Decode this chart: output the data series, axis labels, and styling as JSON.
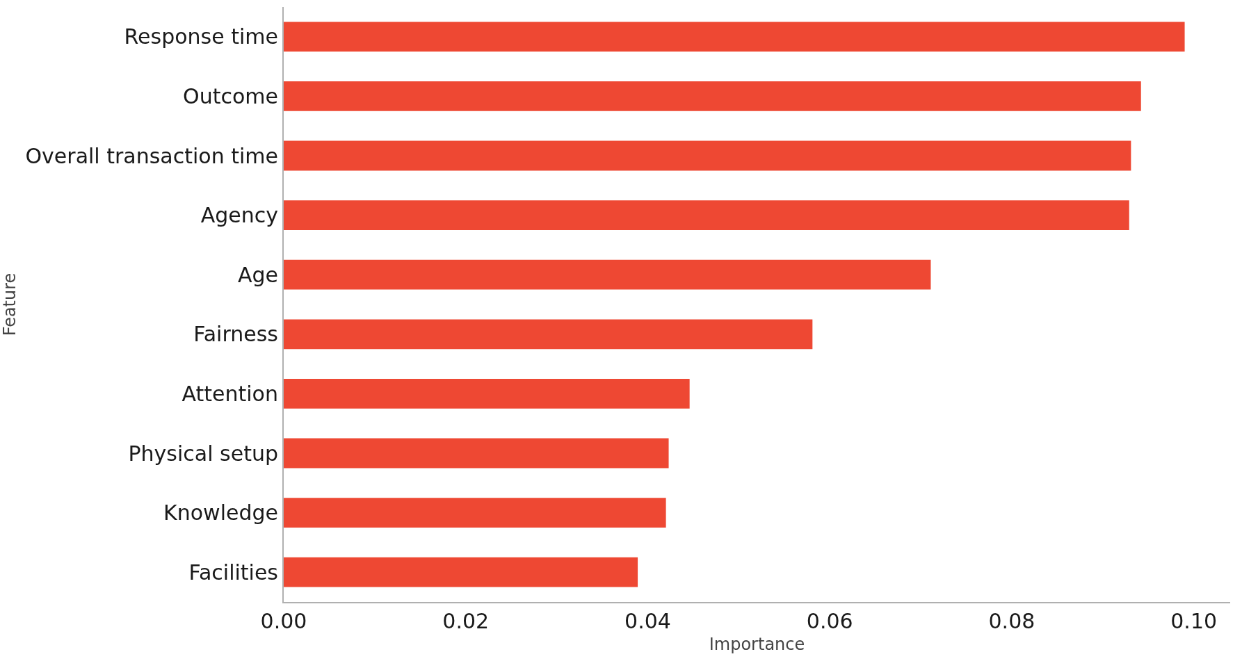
{
  "chart_data": {
    "type": "bar",
    "orientation": "horizontal",
    "xlabel": "Importance",
    "ylabel": "Feature",
    "categories": [
      "Response time",
      "Outcome",
      "Overall transaction time",
      "Agency",
      "Age",
      "Fairness",
      "Attention",
      "Physical setup",
      "Knowledge",
      "Facilities"
    ],
    "values": [
      0.099,
      0.0942,
      0.0931,
      0.0929,
      0.0711,
      0.0581,
      0.0446,
      0.0423,
      0.042,
      0.0389
    ],
    "color": "#ee4833",
    "xlim": [
      0,
      0.104
    ],
    "xticks": [
      {
        "value": 0,
        "label": "0.00"
      },
      {
        "value": 0.02,
        "label": "0.02"
      },
      {
        "value": 0.04,
        "label": "0.04"
      },
      {
        "value": 0.06,
        "label": "0.06"
      },
      {
        "value": 0.08,
        "label": "0.08"
      },
      {
        "value": 0.1,
        "label": "0.10"
      }
    ],
    "grid": false,
    "legend": false
  }
}
